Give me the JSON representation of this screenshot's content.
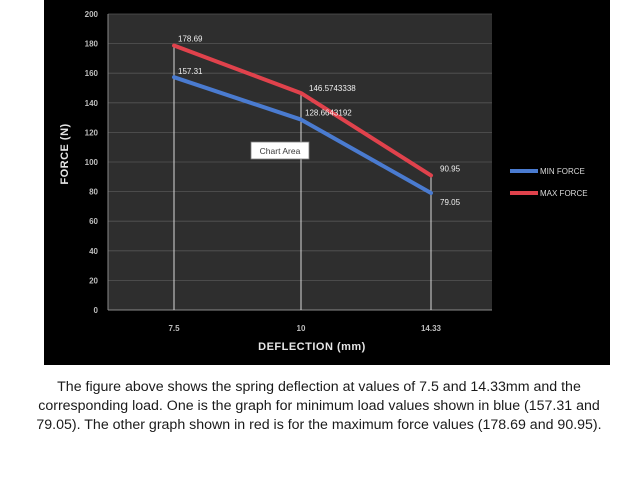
{
  "chart_data": {
    "type": "line",
    "xlabel": "DEFLECTION  (mm)",
    "ylabel": "FORCE (N)",
    "categories": [
      "7.5",
      "10",
      "14.33"
    ],
    "yticks": [
      0,
      20,
      40,
      60,
      80,
      100,
      120,
      140,
      160,
      180,
      200
    ],
    "ylim": [
      0,
      200
    ],
    "grid": true,
    "legend_position": "right",
    "tooltip": "Chart Area",
    "series": [
      {
        "name": "MIN FORCE",
        "color": "#4a7bd0",
        "values": [
          157.31,
          128.6643192,
          79.05
        ],
        "labels": [
          "157.31",
          "128.6643192",
          "79.05"
        ]
      },
      {
        "name": "MAX FORCE",
        "color": "#e0424c",
        "values": [
          178.69,
          146.5743338,
          90.95
        ],
        "labels": [
          "178.69",
          "146.5743338",
          "90.95"
        ]
      }
    ]
  },
  "caption": "The figure above shows the spring deflection at values of 7.5 and 14.33mm and the corresponding load. One is the graph for minimum load values shown in blue (157.31 and 79.05). The other graph shown in red is for the maximum force values (178.69 and 90.95)."
}
